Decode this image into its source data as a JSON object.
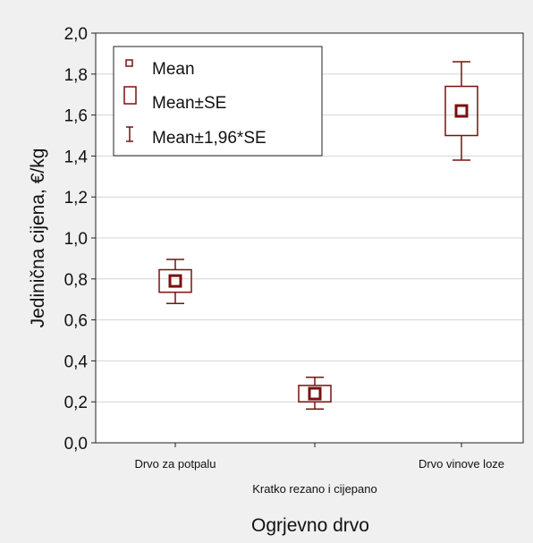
{
  "chart_data": {
    "type": "box",
    "categories": [
      "Drvo za potpalu",
      "Kratko rezano i cijepano",
      "Drvo vinove loze"
    ],
    "series": [
      {
        "name": "Mean",
        "values": [
          0.79,
          0.24,
          1.62
        ]
      },
      {
        "name": "Mean±SE",
        "low": [
          0.735,
          0.2,
          1.5
        ],
        "high": [
          0.845,
          0.28,
          1.74
        ]
      },
      {
        "name": "Mean±1,96*SE",
        "low": [
          0.68,
          0.165,
          1.38
        ],
        "high": [
          0.895,
          0.32,
          1.86
        ]
      }
    ],
    "xlabel": "Ogrjevno drvo",
    "ylabel": "Jedinična cijena, €/kg",
    "ylim": [
      0.0,
      2.0
    ],
    "yticks": [
      "0,0",
      "0,2",
      "0,4",
      "0,6",
      "0,8",
      "1,0",
      "1,2",
      "1,4",
      "1,6",
      "1,8",
      "2,0"
    ],
    "grid": "horizontal",
    "legend_position": "top-left",
    "colors": {
      "box": "#7a1010",
      "plot_bg": "#ffffff",
      "page_bg": "#f0f0f0",
      "grid": "#d4d4d4"
    }
  }
}
